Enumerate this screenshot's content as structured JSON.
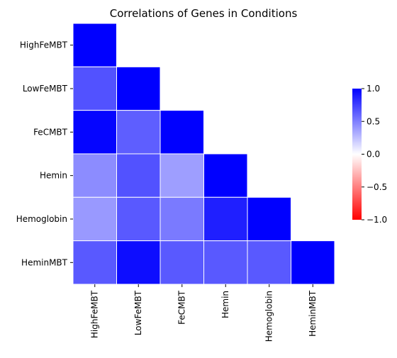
{
  "chart_data": {
    "type": "heatmap",
    "title": "Correlations of Genes in Conditions",
    "rows": [
      "HighFeMBT",
      "LowFeMBT",
      "FeCMBT",
      "Hemin",
      "Hemoglobin",
      "HeminMBT"
    ],
    "cols": [
      "HighFeMBT",
      "LowFeMBT",
      "FeCMBT",
      "Hemin",
      "Hemoglobin",
      "HeminMBT"
    ],
    "mask": "upper-triangle",
    "values": [
      [
        1.0,
        null,
        null,
        null,
        null,
        null
      ],
      [
        0.68,
        1.0,
        null,
        null,
        null,
        null
      ],
      [
        0.98,
        0.63,
        1.0,
        null,
        null,
        null
      ],
      [
        0.45,
        0.68,
        0.38,
        1.0,
        null,
        null
      ],
      [
        0.4,
        0.65,
        0.52,
        0.88,
        1.0,
        null
      ],
      [
        0.65,
        0.95,
        0.65,
        0.65,
        0.65,
        1.0
      ]
    ],
    "colormap": {
      "min_color": "#ff0000",
      "mid_color": "#ffffff",
      "max_color": "#0000ff"
    },
    "colorbar": {
      "vmin": -1.0,
      "vmax": 1.0,
      "ticks": [
        "1.0",
        "0.5",
        "0.0",
        "−0.5",
        "−1.0"
      ],
      "tick_values": [
        1.0,
        0.5,
        0.0,
        -0.5,
        -1.0
      ]
    },
    "grid": false
  }
}
